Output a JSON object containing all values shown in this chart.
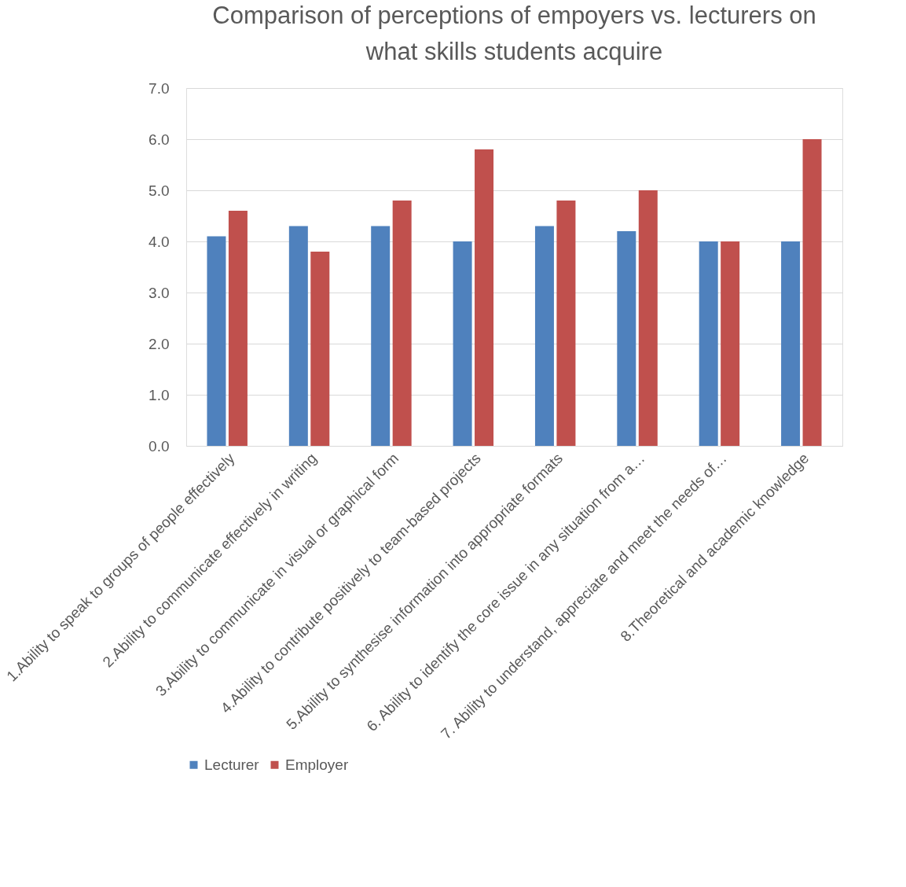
{
  "chart_data": {
    "type": "bar",
    "title": "Comparison of perceptions of empoyers vs. lecturers on what skills students acquire",
    "categories": [
      "1.Ability to speak to groups of people effectively",
      "2.Ability to communicate effectively in writing",
      "3.Ability to communicate in visual or graphical form",
      "4.Ability to contribute positively to team-based projects",
      "5.Ability to synthesise information into appropriate formats",
      "6. Ability to identify the core issue in any situation from a…",
      "7. Ability to understand, appreciate and meet the needs of…",
      "8.Theoretical and academic knowledge"
    ],
    "series": [
      {
        "name": "Lecturer",
        "color": "#4f81bd",
        "values": [
          4.1,
          4.3,
          4.3,
          4.0,
          4.3,
          4.2,
          4.0,
          4.0
        ]
      },
      {
        "name": "Employer",
        "color": "#c0504d",
        "values": [
          4.6,
          3.8,
          4.8,
          5.8,
          4.8,
          5.0,
          4.0,
          6.0
        ]
      }
    ],
    "ylim": [
      0,
      7
    ],
    "yticks": [
      {
        "value": 0,
        "label": "0.0"
      },
      {
        "value": 1,
        "label": "1.0"
      },
      {
        "value": 2,
        "label": "2.0"
      },
      {
        "value": 3,
        "label": "3.0"
      },
      {
        "value": 4,
        "label": "4.0"
      },
      {
        "value": 5,
        "label": "5.0"
      },
      {
        "value": 6,
        "label": "6.0"
      },
      {
        "value": 7,
        "label": "7.0"
      }
    ],
    "grid": "y",
    "legend": "bottom"
  }
}
